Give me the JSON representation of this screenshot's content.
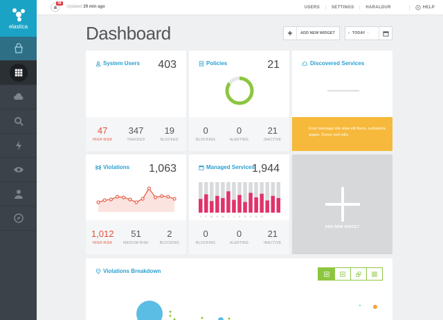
{
  "brand": {
    "name": "elastica",
    "color": "#1ba3c6"
  },
  "sidebar": {
    "items": [
      {
        "icon": "store-icon"
      },
      {
        "icon": "grid-icon"
      },
      {
        "icon": "cloud-icon"
      },
      {
        "icon": "search-icon"
      },
      {
        "icon": "lightning-icon"
      },
      {
        "icon": "eye-icon"
      },
      {
        "icon": "user-icon"
      },
      {
        "icon": "compass-icon"
      }
    ]
  },
  "topbar": {
    "badge": "38",
    "updated_prefix": "Updated",
    "updated_time": "29 min ago",
    "links": {
      "users": "USERS",
      "settings": "SETTINGS",
      "user": "HARALDUR",
      "help": "HELP"
    }
  },
  "page": {
    "title": "Dashboard",
    "add_widget": "ADD NEW WIDGET",
    "today": "TODAY"
  },
  "system_users": {
    "title": "System Users",
    "total": "403",
    "stats": [
      {
        "value": "47",
        "label": "HIGH RISK"
      },
      {
        "value": "347",
        "label": "TRACKED"
      },
      {
        "value": "19",
        "label": "BLOCKED"
      }
    ]
  },
  "policies": {
    "title": "Policies",
    "total": "21",
    "donut_fraction": 0.85,
    "stats": [
      {
        "value": "0",
        "label": "BLOCKING"
      },
      {
        "value": "0",
        "label": "ALERTING"
      },
      {
        "value": "21",
        "label": "INACTIVE"
      }
    ]
  },
  "discovered": {
    "title": "Discovered Services",
    "error": "Error message sits vitae elit libero, a pharetra augue. Donec sed odio."
  },
  "violations": {
    "title": "Violations",
    "total": "1,063",
    "stats": [
      {
        "value": "1,012",
        "label": "HIGH RISK"
      },
      {
        "value": "51",
        "label": "MEDIUM RISK"
      },
      {
        "value": "2",
        "label": "BLOCKING"
      }
    ]
  },
  "managed": {
    "title": "Managed Services",
    "total": "1,944",
    "months": [
      "J",
      "F",
      "M",
      "A",
      "M",
      "J",
      "J",
      "A",
      "S",
      "O",
      "N",
      "D"
    ],
    "stats": [
      {
        "value": "0",
        "label": "BLOCKING"
      },
      {
        "value": "0",
        "label": "ALERTING"
      },
      {
        "value": "21",
        "label": "INACTIVE"
      }
    ]
  },
  "add_widget_card": {
    "label": "ADD NEW WIDGET"
  },
  "breakdown": {
    "title": "Violations Breakdown"
  },
  "chart_data": [
    {
      "type": "line",
      "name": "violations",
      "values": [
        14,
        17,
        18,
        22,
        21,
        18,
        14,
        19,
        34,
        21,
        23,
        22,
        19
      ],
      "ylim": [
        0,
        45
      ]
    },
    {
      "type": "bar",
      "name": "managed-services",
      "categories": [
        "J",
        "F",
        "M",
        "A",
        "M",
        "J",
        "J",
        "A",
        "S",
        "O",
        "N",
        "D",
        "",
        "",
        ""
      ],
      "values": [
        45,
        60,
        38,
        55,
        48,
        70,
        42,
        58,
        35,
        65,
        50,
        62,
        40,
        55,
        48
      ],
      "ylim": [
        0,
        100
      ]
    }
  ]
}
